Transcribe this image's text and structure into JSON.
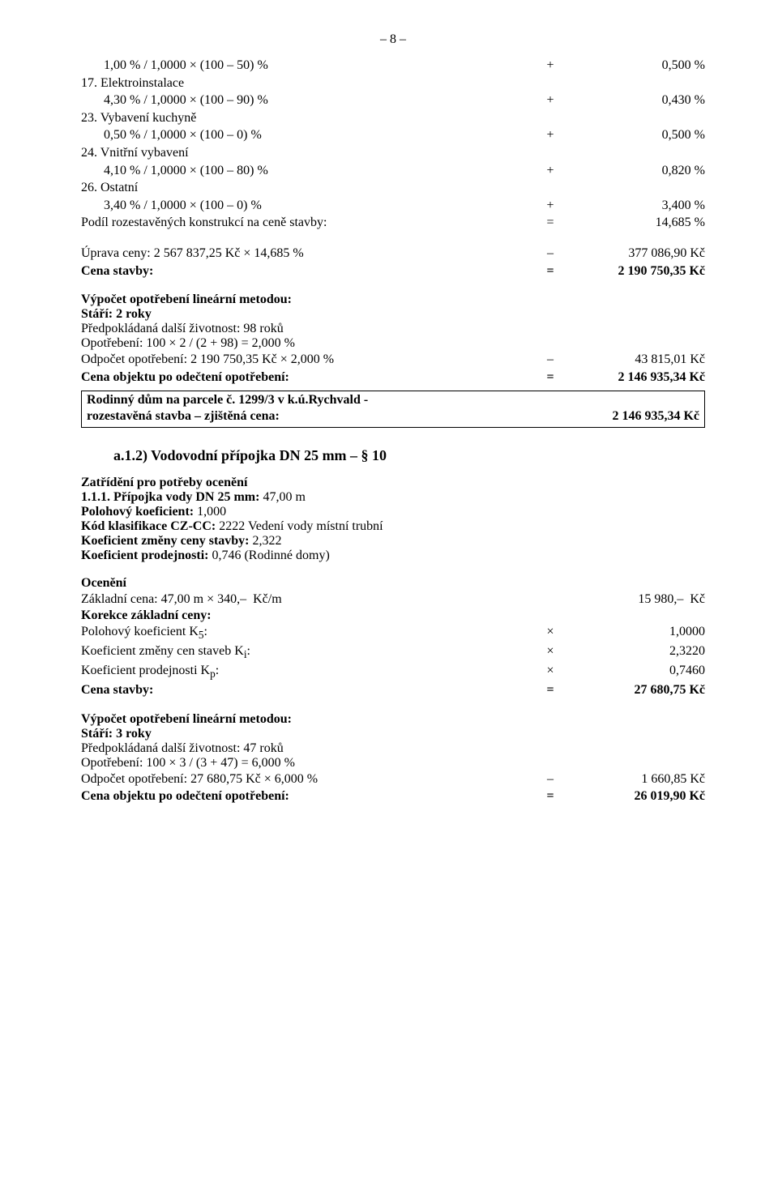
{
  "pageNumber": "– 8 –",
  "items": [
    {
      "label": "       1,00 % / 1,0000 × (100 – 50) %",
      "op": "+",
      "val": "0,500 %"
    },
    {
      "label": "17. Elektroinstalace",
      "op": "",
      "val": ""
    },
    {
      "label": "       4,30 % / 1,0000 × (100 – 90) %",
      "op": "+",
      "val": "0,430 %"
    },
    {
      "label": "23. Vybavení kuchyně",
      "op": "",
      "val": ""
    },
    {
      "label": "       0,50 % / 1,0000 × (100 – 0) %",
      "op": "+",
      "val": "0,500 %"
    },
    {
      "label": "24. Vnitřní vybavení",
      "op": "",
      "val": ""
    },
    {
      "label": "       4,10 % / 1,0000 × (100 – 80) %",
      "op": "+",
      "val": "0,820 %"
    },
    {
      "label": "26. Ostatní",
      "op": "",
      "val": ""
    },
    {
      "label": "       3,40 % / 1,0000 × (100 – 0) %",
      "op": "+",
      "val": "3,400 %"
    },
    {
      "label": "Podíl rozestavěných konstrukcí na ceně stavby:",
      "op": "=",
      "val": "14,685 %"
    }
  ],
  "uprava": {
    "label": "Úprava ceny: 2 567 837,25 Kč × 14,685 %",
    "op": "–",
    "val": "377 086,90 Kč"
  },
  "cenaStavby1": {
    "label": "Cena stavby:",
    "op": "=",
    "val": "2 190 750,35 Kč"
  },
  "vypocetTitle": "Výpočet opotřebení lineární metodou:",
  "stari1": "Stáří: 2 roky",
  "zivotnost1": "Předpokládaná další životnost: 98 roků",
  "opotrebeni1": "Opotřebení: 100 × 2 / (2 + 98) = 2,000 %",
  "odpocet1": {
    "label": "Odpočet opotřebení: 2 190 750,35 Kč × 2,000 %",
    "op": "–",
    "val": "43 815,01 Kč"
  },
  "cenaObjektu1": {
    "label": "Cena objektu po odečtení opotřebení:",
    "op": "=",
    "val": "2 146 935,34 Kč"
  },
  "box": {
    "line1": "Rodinný dům na parcele č. 1299/3 v k.ú.Rychvald -",
    "line2left": "rozestavěná stavba – zjištěná cena:",
    "line2right": "2 146 935,34 Kč"
  },
  "sectionA12": "a.1.2)  Vodovodní přípojka DN 25 mm – § 10",
  "zatrideniTitle": "Zatřídění pro potřeby ocenění",
  "zatrideni": [
    "1.1.1. Přípojka vody DN 25 mm: 47,00 m",
    "Polohový koeficient: 1,000",
    "Kód klasifikace CZ-CC: 2222 Vedení vody místní trubní",
    "Koeficient změny ceny stavby: 2,322",
    "Koeficient prodejnosti: 0,746 (Rodinné domy)"
  ],
  "oceneniTitle": "Ocenění",
  "zakladni": {
    "label": "Základní cena: 47,00 m × 340,–  Kč/m",
    "op": "",
    "val": "15 980,–  Kč"
  },
  "korekceTitle": "Korekce základní ceny:",
  "korekce": [
    {
      "label": "Polohový koeficient K5:",
      "op": "×",
      "val": "1,0000"
    },
    {
      "label": "Koeficient změny cen staveb Ki:",
      "op": "×",
      "val": "2,3220"
    },
    {
      "label": "Koeficient prodejnosti Kp:",
      "op": "×",
      "val": "0,7460"
    }
  ],
  "cenaStavby2": {
    "label": "Cena stavby:",
    "op": "=",
    "val": "27 680,75 Kč"
  },
  "stari2": "Stáří: 3 roky",
  "zivotnost2": "Předpokládaná další životnost: 47 roků",
  "opotrebeni2": "Opotřebení: 100 × 3 / (3 + 47) = 6,000 %",
  "odpocet2": {
    "label": "Odpočet opotřebení: 27 680,75 Kč × 6,000 %",
    "op": "–",
    "val": "1 660,85 Kč"
  },
  "cenaObjektu2": {
    "label": "Cena objektu po odečtení opotřebení:",
    "op": "=",
    "val": "26 019,90 Kč"
  },
  "subscripts": {
    "k5": "5",
    "ki": "i",
    "kp": "p"
  }
}
